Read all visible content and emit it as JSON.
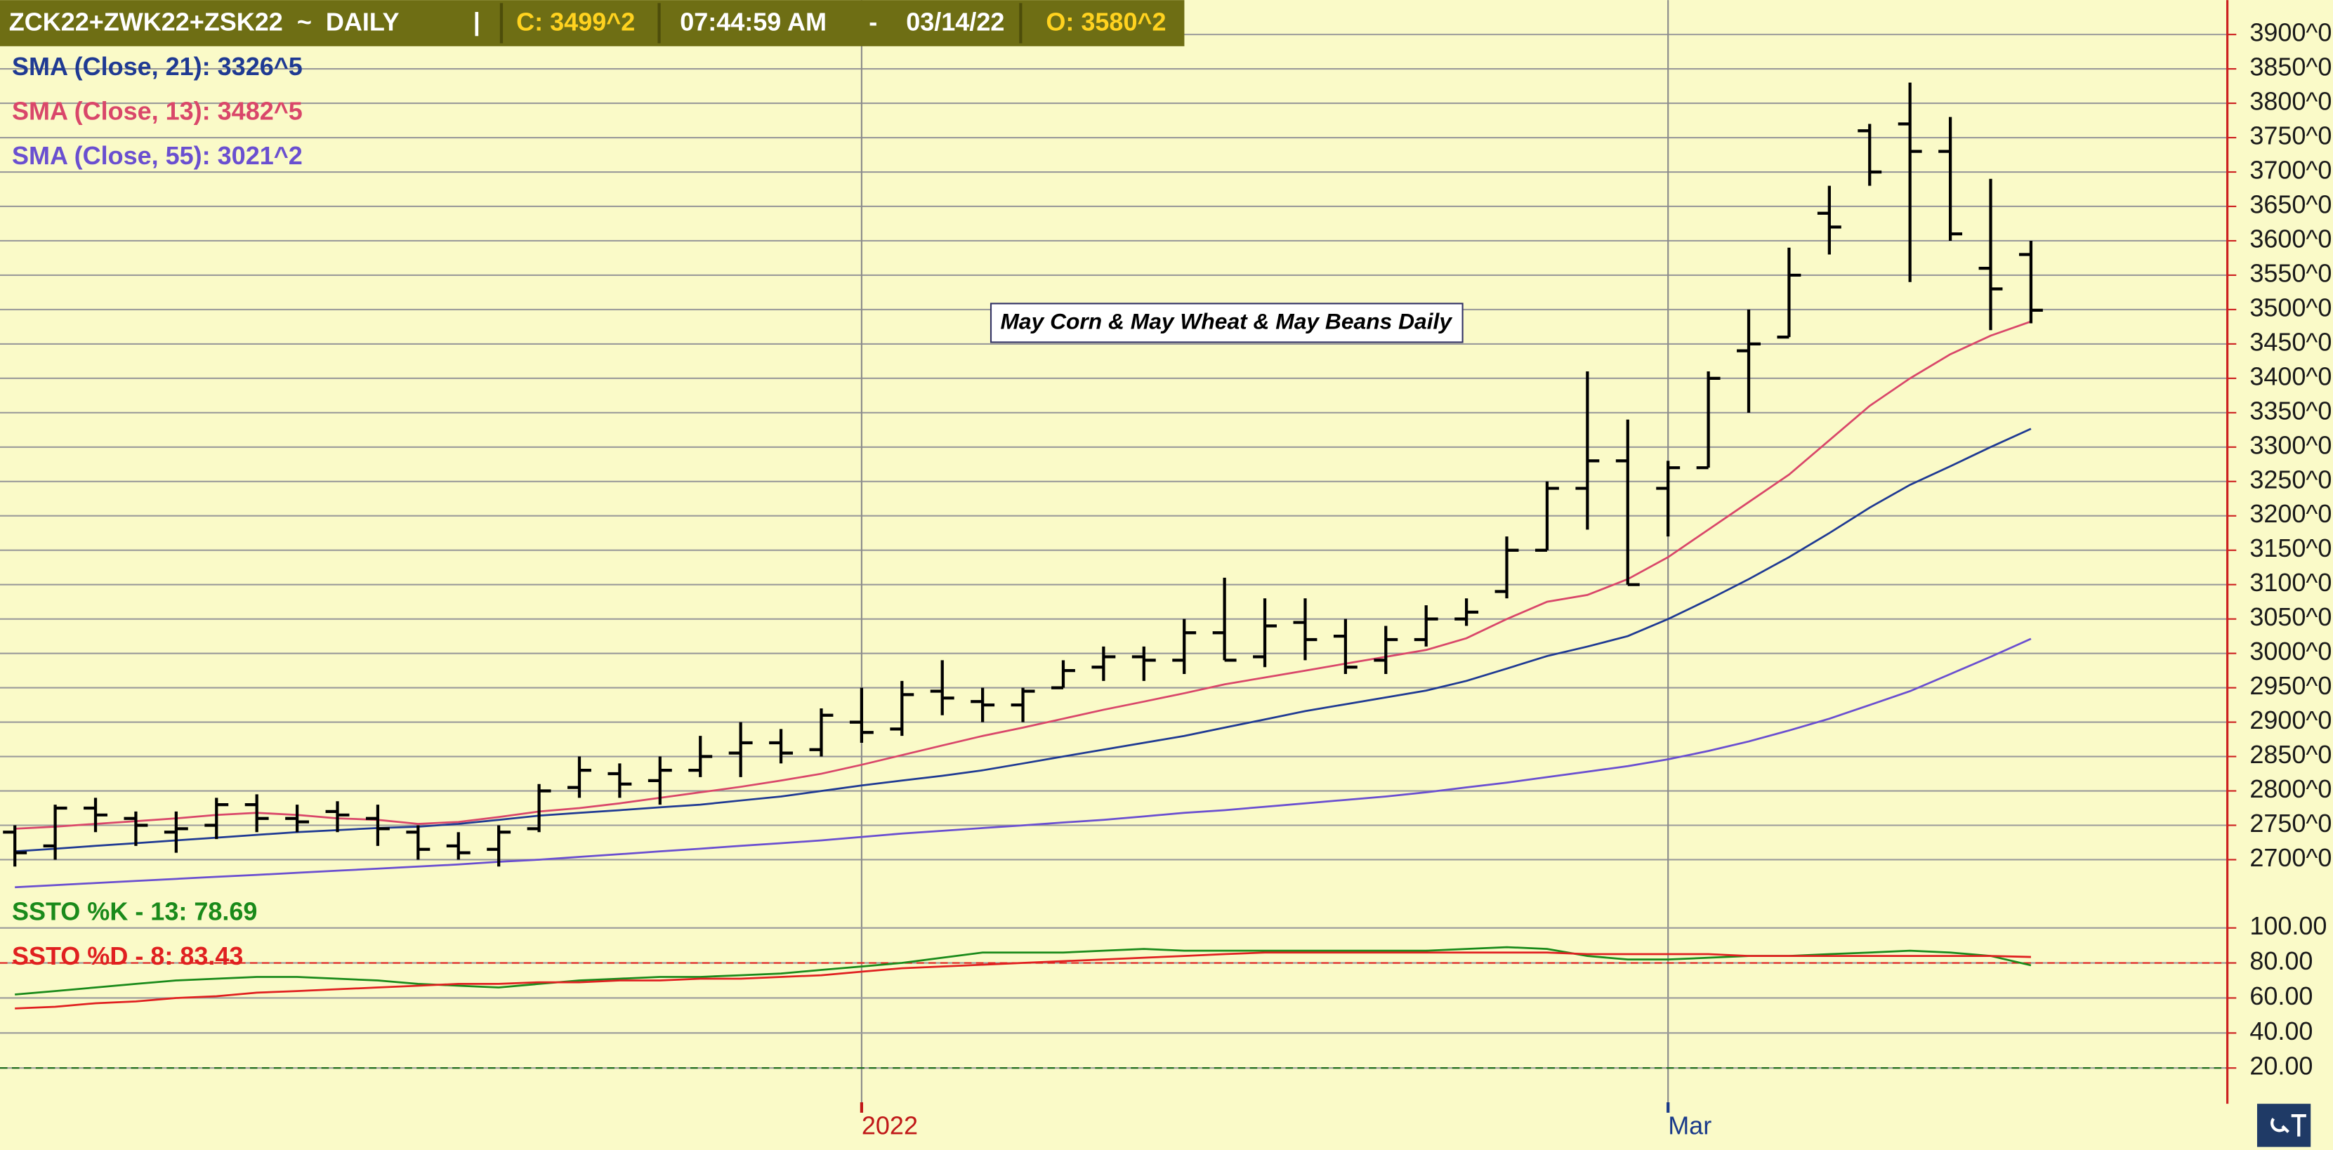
{
  "header": {
    "symbol": "ZCK22+ZWK22+ZSK22  ~  DAILY",
    "separator": "|",
    "close": "C: 3499^2",
    "time": "07:44:59 AM",
    "dash": "-",
    "date": "03/14/22",
    "open": "O: 3580^2"
  },
  "chart_data": [
    {
      "type": "ohlc",
      "annotation": "May Corn & May Wheat & May Beans Daily",
      "categories": [
        null,
        null,
        null,
        null,
        null,
        null,
        null,
        null,
        null,
        null,
        null,
        null,
        null,
        null,
        null,
        null,
        null,
        null,
        null,
        null,
        null,
        "2022",
        null,
        null,
        null,
        null,
        null,
        null,
        null,
        null,
        null,
        null,
        null,
        null,
        null,
        null,
        null,
        null,
        null,
        null,
        null,
        "Mar",
        null,
        null,
        null,
        null,
        null,
        null,
        null,
        null,
        null
      ],
      "open": [
        2740,
        2720,
        2775,
        2760,
        2740,
        2750,
        2780,
        2760,
        2770,
        2760,
        2740,
        2720,
        2715,
        2745,
        2805,
        2825,
        2815,
        2830,
        2855,
        2870,
        2860,
        2900,
        2890,
        2945,
        2930,
        2925,
        2950,
        2980,
        2995,
        2990,
        3030,
        2995,
        3045,
        3025,
        2990,
        3020,
        3050,
        3090,
        3150,
        3240,
        3280,
        3240,
        3270,
        3440,
        3460,
        3640,
        3760,
        3770,
        3730,
        3560,
        3580
      ],
      "high": [
        2750,
        2780,
        2790,
        2770,
        2770,
        2790,
        2795,
        2780,
        2785,
        2780,
        2750,
        2740,
        2750,
        2810,
        2850,
        2840,
        2850,
        2880,
        2900,
        2890,
        2920,
        2950,
        2960,
        2990,
        2950,
        2950,
        2990,
        3010,
        3010,
        3050,
        3110,
        3080,
        3080,
        3050,
        3040,
        3070,
        3080,
        3170,
        3250,
        3410,
        3340,
        3280,
        3410,
        3500,
        3590,
        3680,
        3770,
        3830,
        3780,
        3690,
        3600
      ],
      "low": [
        2690,
        2700,
        2740,
        2720,
        2710,
        2730,
        2740,
        2740,
        2740,
        2720,
        2700,
        2700,
        2690,
        2740,
        2790,
        2790,
        2780,
        2820,
        2820,
        2840,
        2850,
        2870,
        2880,
        2910,
        2900,
        2900,
        2950,
        2960,
        2960,
        2970,
        2990,
        2980,
        2990,
        2970,
        2970,
        3010,
        3040,
        3080,
        3150,
        3180,
        3100,
        3170,
        3270,
        3350,
        3460,
        3580,
        3680,
        3540,
        3600,
        3470,
        3480
      ],
      "close": [
        2710,
        2775,
        2765,
        2750,
        2745,
        2780,
        2760,
        2755,
        2765,
        2745,
        2715,
        2710,
        2740,
        2800,
        2830,
        2810,
        2830,
        2850,
        2870,
        2855,
        2910,
        2885,
        2940,
        2935,
        2925,
        2945,
        2975,
        2995,
        2990,
        3030,
        2990,
        3040,
        3020,
        2980,
        3020,
        3050,
        3060,
        3150,
        3240,
        3280,
        3100,
        3270,
        3400,
        3450,
        3550,
        3620,
        3700,
        3730,
        3610,
        3530,
        3499
      ],
      "bar_color": "#000000",
      "series": [
        {
          "name": "SMA (Close, 21): 3326^5",
          "color": "#1f3a93",
          "values": [
            2712,
            2716,
            2720,
            2724,
            2728,
            2732,
            2736,
            2740,
            2743,
            2746,
            2748,
            2752,
            2758,
            2764,
            2768,
            2772,
            2776,
            2780,
            2786,
            2792,
            2800,
            2808,
            2815,
            2822,
            2830,
            2840,
            2850,
            2860,
            2870,
            2880,
            2892,
            2904,
            2916,
            2926,
            2936,
            2946,
            2960,
            2978,
            2996,
            3010,
            3025,
            3050,
            3078,
            3108,
            3140,
            3175,
            3212,
            3245,
            3272,
            3300,
            3326.5
          ]
        },
        {
          "name": "SMA (Close, 13): 3482^5",
          "color": "#d9476a",
          "values": [
            2745,
            2748,
            2752,
            2756,
            2760,
            2765,
            2768,
            2765,
            2760,
            2758,
            2752,
            2755,
            2762,
            2770,
            2775,
            2782,
            2790,
            2798,
            2806,
            2815,
            2825,
            2838,
            2852,
            2866,
            2880,
            2892,
            2905,
            2918,
            2930,
            2942,
            2955,
            2965,
            2975,
            2985,
            2995,
            3005,
            3022,
            3050,
            3075,
            3085,
            3108,
            3140,
            3180,
            3220,
            3260,
            3310,
            3360,
            3400,
            3435,
            3462,
            3482.5
          ]
        },
        {
          "name": "SMA (Close, 55): 3021^2",
          "color": "#6a4fd0",
          "values": [
            2660,
            2663,
            2666,
            2669,
            2672,
            2675,
            2678,
            2681,
            2684,
            2687,
            2690,
            2693,
            2697,
            2700,
            2704,
            2708,
            2712,
            2716,
            2720,
            2724,
            2728,
            2733,
            2738,
            2742,
            2746,
            2750,
            2754,
            2758,
            2763,
            2768,
            2772,
            2777,
            2782,
            2787,
            2792,
            2798,
            2805,
            2812,
            2820,
            2828,
            2836,
            2846,
            2858,
            2872,
            2888,
            2905,
            2925,
            2945,
            2970,
            2995,
            3021.2
          ]
        }
      ],
      "ylim": [
        2650,
        3950
      ],
      "yticks": [
        {
          "value": 2700,
          "label": "2700^0"
        },
        {
          "value": 2750,
          "label": "2750^0"
        },
        {
          "value": 2800,
          "label": "2800^0"
        },
        {
          "value": 2850,
          "label": "2850^0"
        },
        {
          "value": 2900,
          "label": "2900^0"
        },
        {
          "value": 2950,
          "label": "2950^0"
        },
        {
          "value": 3000,
          "label": "3000^0"
        },
        {
          "value": 3050,
          "label": "3050^0"
        },
        {
          "value": 3100,
          "label": "3100^0"
        },
        {
          "value": 3150,
          "label": "3150^0"
        },
        {
          "value": 3200,
          "label": "3200^0"
        },
        {
          "value": 3250,
          "label": "3250^0"
        },
        {
          "value": 3300,
          "label": "3300^0"
        },
        {
          "value": 3350,
          "label": "3350^0"
        },
        {
          "value": 3400,
          "label": "3400^0"
        },
        {
          "value": 3450,
          "label": "3450^0"
        },
        {
          "value": 3500,
          "label": "3500^0"
        },
        {
          "value": 3550,
          "label": "3550^0"
        },
        {
          "value": 3600,
          "label": "3600^0"
        },
        {
          "value": 3650,
          "label": "3650^0"
        },
        {
          "value": 3700,
          "label": "3700^0"
        },
        {
          "value": 3750,
          "label": "3750^0"
        },
        {
          "value": 3800,
          "label": "3800^0"
        },
        {
          "value": 3850,
          "label": "3850^0"
        },
        {
          "value": 3900,
          "label": "3900^0"
        }
      ],
      "grid": true
    },
    {
      "type": "line",
      "series": [
        {
          "name": "SSTO %K - 13: 78.69",
          "color": "#1a8a1a",
          "values": [
            62,
            64,
            66,
            68,
            70,
            71,
            72,
            72,
            71,
            70,
            68,
            67,
            66,
            68,
            70,
            71,
            72,
            72,
            73,
            74,
            76,
            78,
            80,
            83,
            86,
            86,
            86,
            87,
            88,
            87,
            87,
            87,
            87,
            87,
            87,
            87,
            88,
            89,
            88,
            84,
            82,
            82,
            83,
            84,
            84,
            85,
            86,
            87,
            86,
            84,
            78.69
          ]
        },
        {
          "name": "SSTO %D - 8: 83.43",
          "color": "#e02020",
          "values": [
            54,
            55,
            57,
            58,
            60,
            61,
            63,
            64,
            65,
            66,
            67,
            68,
            68,
            69,
            69,
            70,
            70,
            71,
            71,
            72,
            73,
            75,
            77,
            78,
            79,
            80,
            81,
            82,
            83,
            84,
            85,
            86,
            86,
            86,
            86,
            86,
            86,
            86,
            86,
            85,
            85,
            85,
            85,
            84,
            84,
            84,
            84,
            84,
            84,
            84,
            83.43
          ]
        }
      ],
      "ylim": [
        0,
        110
      ],
      "yticks": [
        {
          "value": 20,
          "label": "20.00"
        },
        {
          "value": 40,
          "label": "40.00"
        },
        {
          "value": 60,
          "label": "60.00"
        },
        {
          "value": 80,
          "label": "80.00"
        },
        {
          "value": 100,
          "label": "100.00"
        }
      ],
      "reference_lines": [
        {
          "value": 80,
          "color": "#e02020"
        },
        {
          "value": 20,
          "color": "#1a6a1a"
        }
      ],
      "grid": true
    }
  ]
}
